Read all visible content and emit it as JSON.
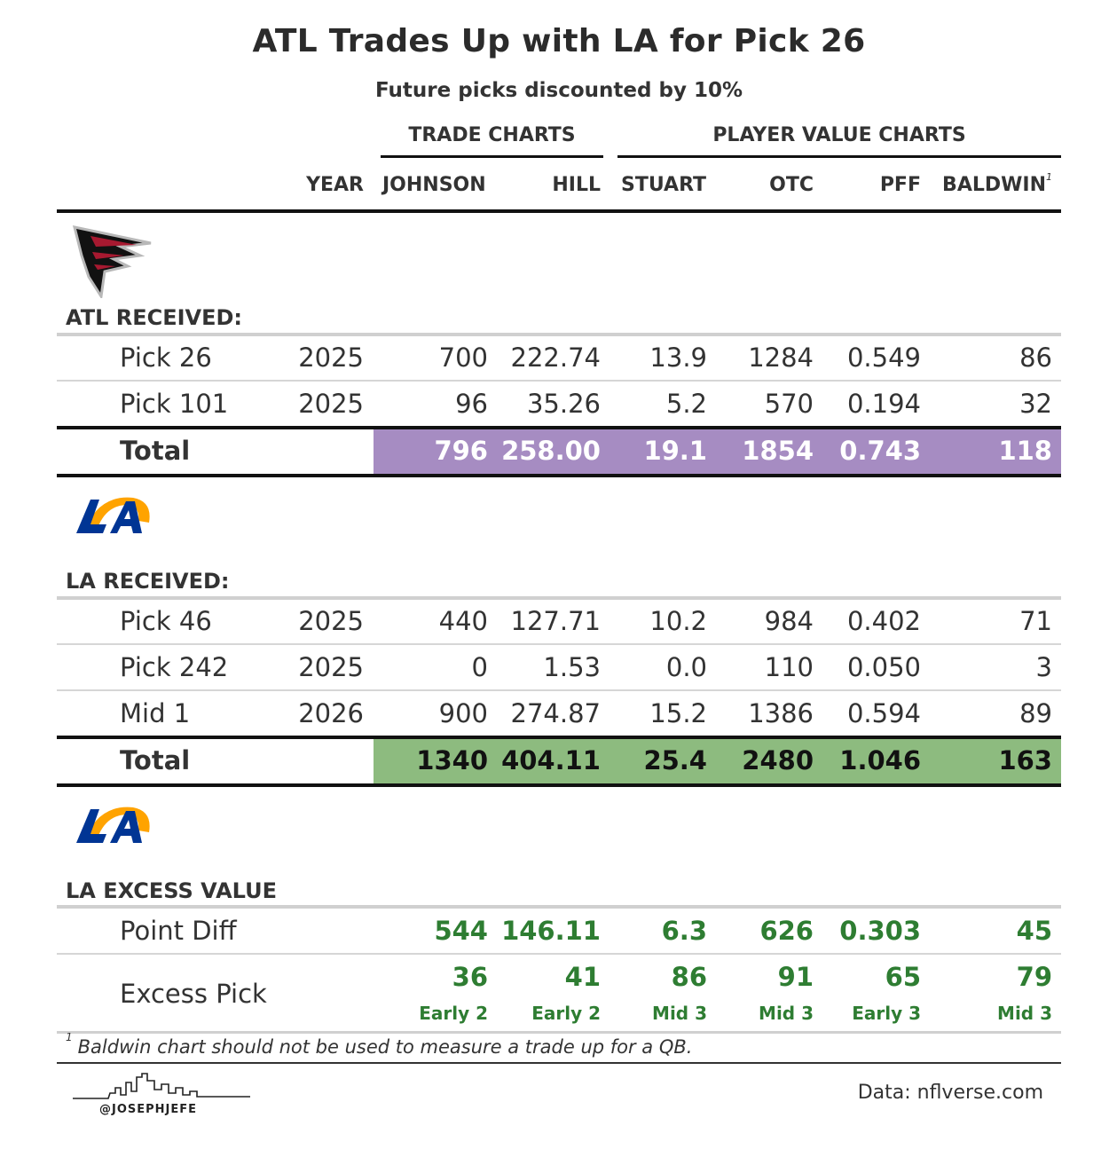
{
  "title": "ATL Trades Up with LA for Pick 26",
  "subtitle": "Future picks discounted by 10%",
  "spanners": {
    "trade": "TRADE CHARTS",
    "player": "PLAYER VALUE CHARTS"
  },
  "columns": {
    "year": "YEAR",
    "johnson": "JOHNSON",
    "hill": "HILL",
    "stuart": "STUART",
    "otc": "OTC",
    "pff": "PFF",
    "baldwin": "BALDWIN",
    "baldwin_note": "1"
  },
  "colors": {
    "atl_total": "#a68cc2",
    "la_total": "#8dbb7f",
    "excess": "#2e7d32",
    "rule": "#111111"
  },
  "icons": {
    "atl": "falcons-logo",
    "la": "rams-logo",
    "la2": "rams-logo"
  },
  "atl": {
    "label": "ATL RECEIVED:",
    "rows": [
      {
        "pick": "Pick 26",
        "year": "2025",
        "johnson": "700",
        "hill": "222.74",
        "stuart": "13.9",
        "otc": "1284",
        "pff": "0.549",
        "baldwin": "86"
      },
      {
        "pick": "Pick 101",
        "year": "2025",
        "johnson": "96",
        "hill": "35.26",
        "stuart": "5.2",
        "otc": "570",
        "pff": "0.194",
        "baldwin": "32"
      }
    ],
    "total": {
      "label": "Total",
      "johnson": "796",
      "hill": "258.00",
      "stuart": "19.1",
      "otc": "1854",
      "pff": "0.743",
      "baldwin": "118"
    }
  },
  "la": {
    "label": "LA RECEIVED:",
    "rows": [
      {
        "pick": "Pick 46",
        "year": "2025",
        "johnson": "440",
        "hill": "127.71",
        "stuart": "10.2",
        "otc": "984",
        "pff": "0.402",
        "baldwin": "71"
      },
      {
        "pick": "Pick 242",
        "year": "2025",
        "johnson": "0",
        "hill": "1.53",
        "stuart": "0.0",
        "otc": "110",
        "pff": "0.050",
        "baldwin": "3"
      },
      {
        "pick": "Mid 1",
        "year": "2026",
        "johnson": "900",
        "hill": "274.87",
        "stuart": "15.2",
        "otc": "1386",
        "pff": "0.594",
        "baldwin": "89"
      }
    ],
    "total": {
      "label": "Total",
      "johnson": "1340",
      "hill": "404.11",
      "stuart": "25.4",
      "otc": "2480",
      "pff": "1.046",
      "baldwin": "163"
    }
  },
  "excess": {
    "label": "LA EXCESS VALUE",
    "point_diff": {
      "label": "Point Diff",
      "johnson": "544",
      "hill": "146.11",
      "stuart": "6.3",
      "otc": "626",
      "pff": "0.303",
      "baldwin": "45"
    },
    "excess_pick": {
      "label": "Excess Pick",
      "johnson": "36",
      "hill": "41",
      "stuart": "86",
      "otc": "91",
      "pff": "65",
      "baldwin": "79"
    },
    "excess_round": {
      "johnson": "Early 2",
      "hill": "Early 2",
      "stuart": "Mid 3",
      "otc": "Mid 3",
      "pff": "Early 3",
      "baldwin": "Mid 3"
    }
  },
  "footnote": {
    "mark": "1",
    "text": "Baldwin chart should not be used to measure a trade up for a QB."
  },
  "source": "Data: nflverse.com",
  "handle": "@JOSEPHJEFE",
  "chart_data": {
    "type": "table",
    "title": "ATL Trades Up with LA for Pick 26",
    "subtitle": "Future picks discounted by 10%",
    "columns": [
      "YEAR",
      "JOHNSON",
      "HILL",
      "STUART",
      "OTC",
      "PFF",
      "BALDWIN"
    ],
    "groups": [
      "ATL RECEIVED:",
      "LA RECEIVED:",
      "LA EXCESS VALUE"
    ]
  }
}
